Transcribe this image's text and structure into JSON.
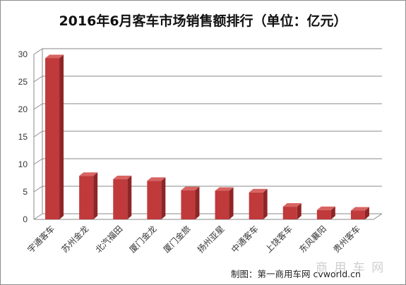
{
  "chart_data": {
    "type": "bar",
    "title": "2016年6月客车市场销售额排行（单位：亿元）",
    "xlabel": "",
    "ylabel": "",
    "categories": [
      "宇通客车",
      "苏州金龙",
      "北汽福田",
      "厦门金龙",
      "厦门金旅",
      "扬州亚星",
      "中通客车",
      "上饶客车",
      "东风襄阳",
      "贵州客车"
    ],
    "values": [
      29.3,
      7.9,
      7.3,
      7.0,
      5.3,
      5.2,
      4.9,
      2.3,
      1.7,
      1.6
    ],
    "ylim": [
      0,
      30
    ],
    "yticks": [
      "0",
      "5",
      "10",
      "15",
      "20",
      "25",
      "30"
    ],
    "grid": true,
    "bar_color": "#c0393b",
    "bar_side_color": "#8e2526",
    "bar_top_color": "#d86462",
    "credit": "制图：第一商用车网 cvworld.cn",
    "watermark": "商 用 车 网"
  }
}
